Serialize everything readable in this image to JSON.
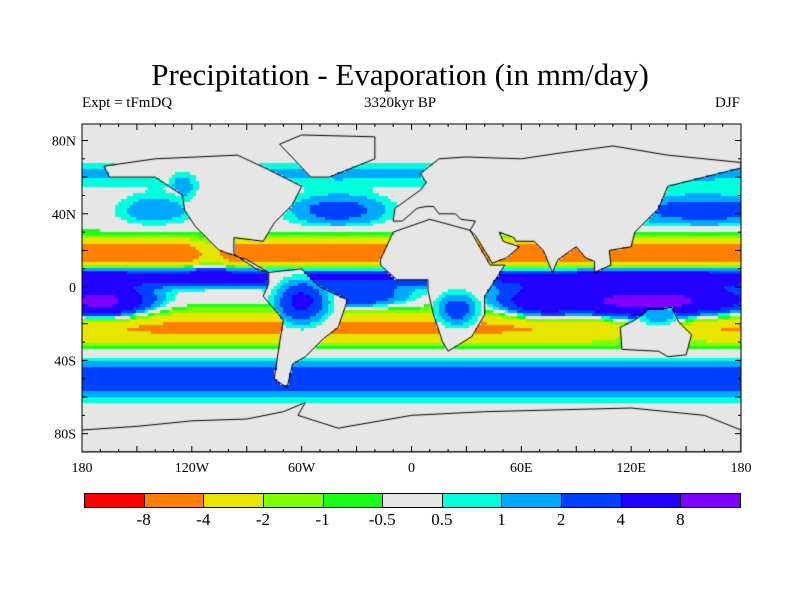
{
  "title": "Precipitation - Evaporation (in mm/day)",
  "left_label": "Expt = tFmDQ",
  "center_label": "3320kyr BP",
  "right_label": "DJF",
  "x_ticks": [
    "180",
    "120W",
    "60W",
    "0",
    "60E",
    "120E",
    "180"
  ],
  "y_ticks": [
    "80N",
    "40N",
    "0",
    "40S",
    "80S"
  ],
  "colorbar": {
    "levels": [
      "-8",
      "-4",
      "-2",
      "-1",
      "-0.5",
      "0.5",
      "1",
      "2",
      "4",
      "8"
    ],
    "level_values": [
      -8,
      -4,
      -2,
      -1,
      -0.5,
      0.5,
      1,
      2,
      4,
      8
    ],
    "colors": [
      "#ff0000",
      "#ff8000",
      "#e6e600",
      "#80ff00",
      "#19ff19",
      "#e6e6e6",
      "#00ffdd",
      "#00a8ff",
      "#0040ff",
      "#2000ff",
      "#8000ff"
    ]
  }
}
